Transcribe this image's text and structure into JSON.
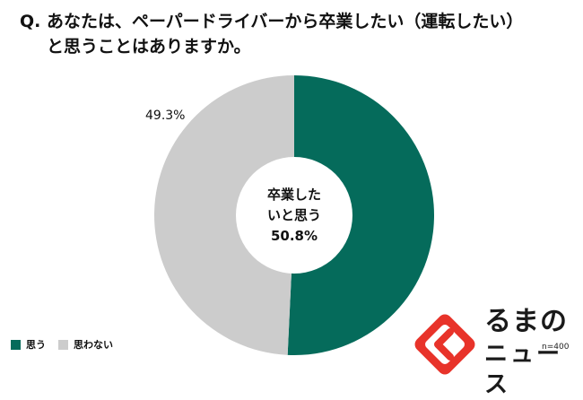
{
  "question": {
    "line1": "Q. あなたは、ペーパードライバーから卒業したい（運転したい）",
    "line2": "と思うことはありますか。"
  },
  "chart_data": {
    "type": "pie",
    "variant": "donut",
    "categories": [
      "思う",
      "思わない"
    ],
    "values": [
      50.8,
      49.3
    ],
    "unit": "%",
    "colors": [
      "#056b5b",
      "#cccccc"
    ],
    "data_labels": [
      "",
      "49.3%"
    ],
    "center_label": {
      "line1": "卒業した",
      "line2": "いと思う",
      "line3": "50.8%"
    },
    "legend_position": "bottom-left",
    "sample_size": "n=400"
  },
  "legend": {
    "items": [
      {
        "label": "思う",
        "color": "#056b5b"
      },
      {
        "label": "思わない",
        "color": "#cccccc"
      }
    ]
  },
  "watermark": {
    "line1": "るまの",
    "line2": "ニュース",
    "icon": "kuruma-logo-mark",
    "accent_color": "#e8332a"
  }
}
